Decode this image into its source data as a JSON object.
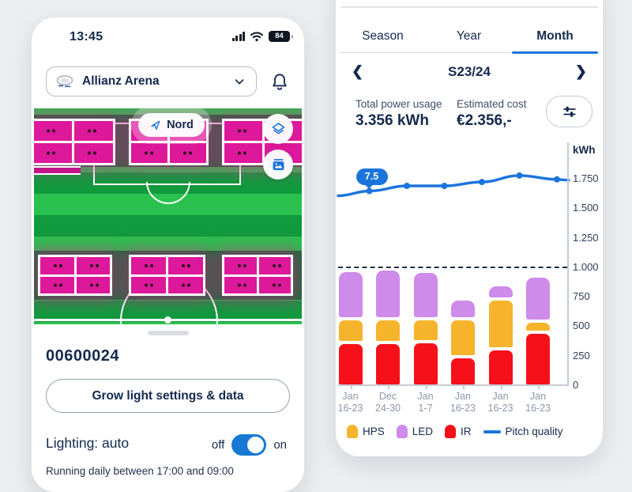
{
  "left_phone": {
    "status_bar": {
      "time": "13:45",
      "battery_level": "84"
    },
    "venue_selector": {
      "label": "Allianz Arena"
    },
    "map": {
      "compass_label": "Nord"
    },
    "device_id": "00600024",
    "settings_button_label": "Grow light settings & data",
    "lighting": {
      "label": "Lighting: auto",
      "off_label": "off",
      "on_label": "on",
      "state": "on"
    },
    "schedule_note": "Running daily between 17:00 and 09:00"
  },
  "right_panel": {
    "tabs": [
      {
        "label": "Season",
        "active": false
      },
      {
        "label": "Year",
        "active": false
      },
      {
        "label": "Month",
        "active": true
      }
    ],
    "period": {
      "label": "S23/24"
    },
    "stats": [
      {
        "label": "Total power usage",
        "value": "3.356 kWh"
      },
      {
        "label": "Estimated cost",
        "value": "€2.356,-"
      }
    ],
    "chart_data": {
      "type": "combo: stacked bar + line",
      "unit": "kWh",
      "categories": [
        {
          "month": "Jan",
          "days": "16-23"
        },
        {
          "month": "Dec",
          "days": "24-30"
        },
        {
          "month": "Jan",
          "days": "1-7"
        },
        {
          "month": "Jan",
          "days": "16-23"
        },
        {
          "month": "Jan",
          "days": "16-23"
        },
        {
          "month": "Jan",
          "days": "16-23"
        }
      ],
      "bar_series_bottom_to_top": [
        {
          "name": "IR",
          "color": "#F6101A",
          "values": [
            355,
            355,
            360,
            235,
            300,
            440
          ]
        },
        {
          "name": "HPS",
          "color": "#F6B42C",
          "values": [
            190,
            190,
            185,
            310,
            410,
            85
          ]
        },
        {
          "name": "LED",
          "color": "#CE8BEA",
          "values": [
            395,
            405,
            390,
            150,
            110,
            365
          ]
        }
      ],
      "line_series": {
        "name": "Pitch quality",
        "color": "#1B74DC",
        "scale": "0-10",
        "values": [
          7.5,
          7.7,
          7.7,
          7.85,
          8.1,
          7.95
        ]
      },
      "annotation": {
        "label": "7.5",
        "category_index": 0
      },
      "y_axis": {
        "label": "kWh",
        "ticks": [
          "1.750",
          "1.500",
          "1.250",
          "1.000",
          "750",
          "500",
          "250",
          "0"
        ],
        "tick_interval_kwh": 250
      },
      "reference_line_kwh": 1000,
      "legend": [
        {
          "label": "HPS",
          "color": "#F6B42C",
          "type": "bar"
        },
        {
          "label": "LED",
          "color": "#CE8BEA",
          "type": "bar"
        },
        {
          "label": "IR",
          "color": "#F6101A",
          "type": "bar"
        },
        {
          "label": "Pitch quality",
          "color": "#1B74DC",
          "type": "line"
        }
      ],
      "legend_position": "bottom",
      "grid": false
    }
  },
  "colors": {
    "accent_blue": "#1B74DC",
    "navy_text": "#14294E",
    "toggle_on": "#1779D3",
    "pitch_light_green": "#2BC14F",
    "pitch_dark_green": "#129A3E",
    "grow_light_magenta": "#DE189B",
    "bar_red": "#F6101A",
    "bar_orange": "#F6B42C",
    "bar_purple": "#CE8BEA",
    "background": "#ECEEF0"
  }
}
